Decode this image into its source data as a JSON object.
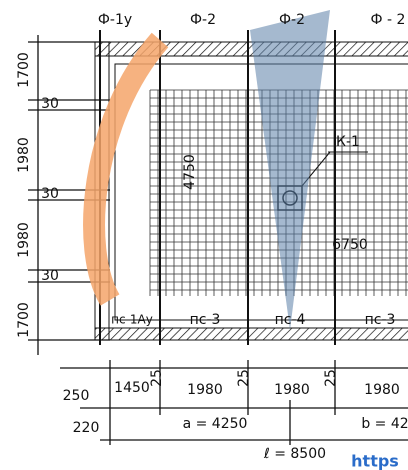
{
  "top_labels": [
    "Ф-1у",
    "Ф-2",
    "Ф-2",
    "Ф - 2"
  ],
  "left_dims": [
    "1700",
    "30",
    "1980",
    "30",
    "1980",
    "30",
    "1700"
  ],
  "plan_labels": {
    "node": "К-1",
    "width": "4750",
    "length": "6750"
  },
  "slab_labels": [
    "пс-1Ау",
    "пс-3",
    "пс-4",
    "пс-3"
  ],
  "bottom_dims": {
    "row1": [
      "250",
      "1450",
      "25",
      "1980",
      "25",
      "1980",
      "25",
      "1980"
    ],
    "row2": [
      "220",
      "a = 4250",
      "b = 42"
    ],
    "row3": [
      "ℓ = 8500"
    ]
  },
  "watermark": "https"
}
